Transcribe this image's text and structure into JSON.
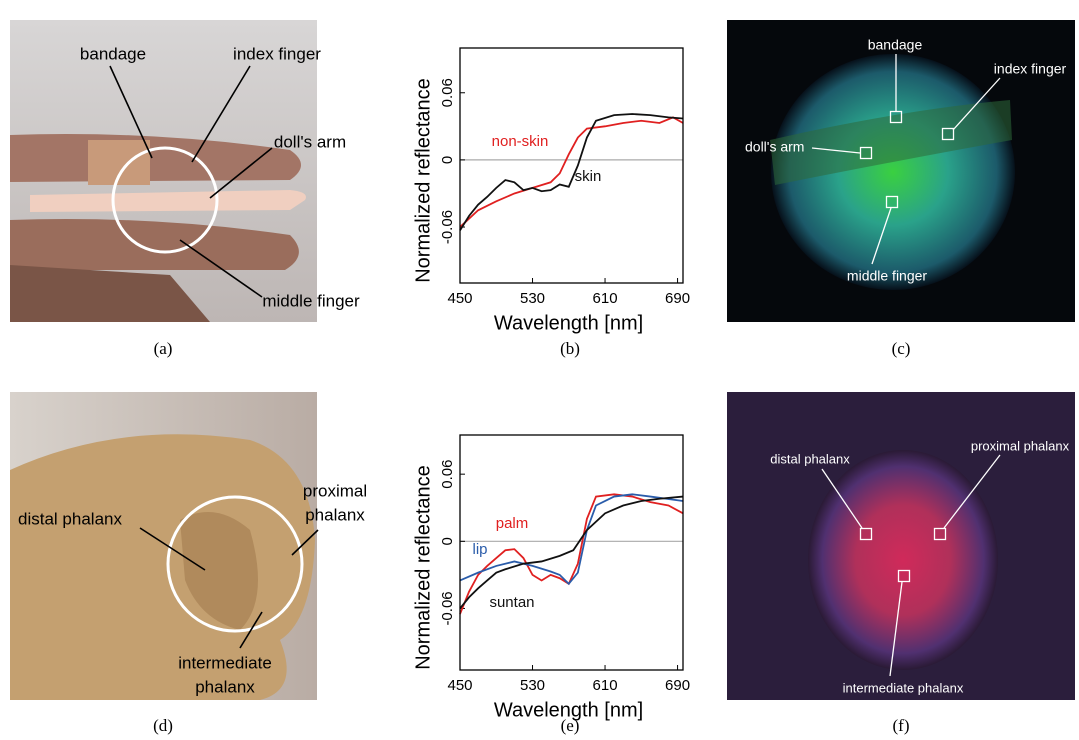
{
  "chart_data": [
    {
      "type": "line",
      "caption": "(b)",
      "xlabel": "Wavelength [nm]",
      "ylabel": "Normalized reflectance",
      "xlim": [
        450,
        696
      ],
      "xticks": [
        450,
        530,
        610,
        690
      ],
      "ylim": [
        -0.11,
        0.1
      ],
      "yticks": [
        -0.06,
        0,
        0.06
      ],
      "hline": 0,
      "series": [
        {
          "name": "non-skin",
          "color": "#e02020",
          "x": [
            450,
            470,
            490,
            510,
            530,
            550,
            560,
            570,
            580,
            590,
            610,
            630,
            650,
            670,
            685,
            696
          ],
          "values": [
            -0.06,
            -0.045,
            -0.037,
            -0.03,
            -0.025,
            -0.02,
            -0.012,
            0.005,
            0.02,
            0.028,
            0.03,
            0.033,
            0.035,
            0.033,
            0.038,
            0.033
          ]
        },
        {
          "name": "skin",
          "color": "#111111",
          "x": [
            450,
            460,
            470,
            480,
            490,
            500,
            510,
            520,
            530,
            540,
            550,
            560,
            570,
            580,
            590,
            600,
            620,
            640,
            660,
            680,
            696
          ],
          "values": [
            -0.063,
            -0.05,
            -0.04,
            -0.033,
            -0.025,
            -0.018,
            -0.02,
            -0.027,
            -0.025,
            -0.028,
            -0.027,
            -0.022,
            -0.024,
            -0.005,
            0.02,
            0.035,
            0.04,
            0.041,
            0.04,
            0.038,
            0.037
          ]
        }
      ]
    },
    {
      "type": "line",
      "caption": "(e)",
      "xlabel": "Wavelength [nm]",
      "ylabel": "Normalized reflectance",
      "xlim": [
        450,
        696
      ],
      "xticks": [
        450,
        530,
        610,
        690
      ],
      "ylim": [
        -0.115,
        0.095
      ],
      "yticks": [
        -0.06,
        0,
        0.06
      ],
      "hline": 0,
      "series": [
        {
          "name": "palm",
          "color": "#e02020",
          "x": [
            450,
            460,
            470,
            480,
            490,
            500,
            510,
            520,
            530,
            540,
            550,
            560,
            570,
            580,
            590,
            600,
            620,
            640,
            660,
            680,
            696
          ],
          "values": [
            -0.065,
            -0.045,
            -0.03,
            -0.022,
            -0.015,
            -0.008,
            -0.007,
            -0.015,
            -0.03,
            -0.035,
            -0.03,
            -0.033,
            -0.038,
            -0.02,
            0.02,
            0.04,
            0.042,
            0.04,
            0.035,
            0.032,
            0.025
          ]
        },
        {
          "name": "lip",
          "color": "#2a5caa",
          "x": [
            450,
            470,
            490,
            510,
            530,
            550,
            560,
            570,
            580,
            590,
            600,
            620,
            640,
            660,
            696
          ],
          "values": [
            -0.035,
            -0.028,
            -0.022,
            -0.018,
            -0.022,
            -0.027,
            -0.03,
            -0.038,
            -0.028,
            0.01,
            0.032,
            0.04,
            0.042,
            0.04,
            0.036
          ]
        },
        {
          "name": "suntan",
          "color": "#111111",
          "x": [
            450,
            460,
            470,
            480,
            490,
            500,
            520,
            540,
            560,
            575,
            590,
            610,
            630,
            650,
            670,
            696
          ],
          "values": [
            -0.06,
            -0.05,
            -0.042,
            -0.035,
            -0.028,
            -0.025,
            -0.02,
            -0.018,
            -0.013,
            -0.008,
            0.01,
            0.025,
            0.032,
            0.036,
            0.038,
            0.04
          ]
        }
      ]
    }
  ],
  "photos": [
    {
      "caption": "(a)",
      "labels": [
        [
          "bandage"
        ],
        [
          "index finger"
        ],
        [
          "doll's arm"
        ],
        [
          "middle finger"
        ]
      ]
    },
    {
      "caption": "(c)",
      "labels": [
        [
          "bandage"
        ],
        [
          "index finger"
        ],
        [
          "doll's arm"
        ],
        [
          "middle finger"
        ]
      ]
    },
    {
      "caption": "(d)",
      "labels": [
        [
          "proximal",
          "phalanx"
        ],
        [
          "distal phalanx"
        ],
        [
          "intermediate",
          "phalanx"
        ]
      ]
    },
    {
      "caption": "(f)",
      "labels": [
        [
          "distal phalanx"
        ],
        [
          "proximal phalanx"
        ],
        [
          "intermediate phalanx"
        ]
      ]
    }
  ]
}
